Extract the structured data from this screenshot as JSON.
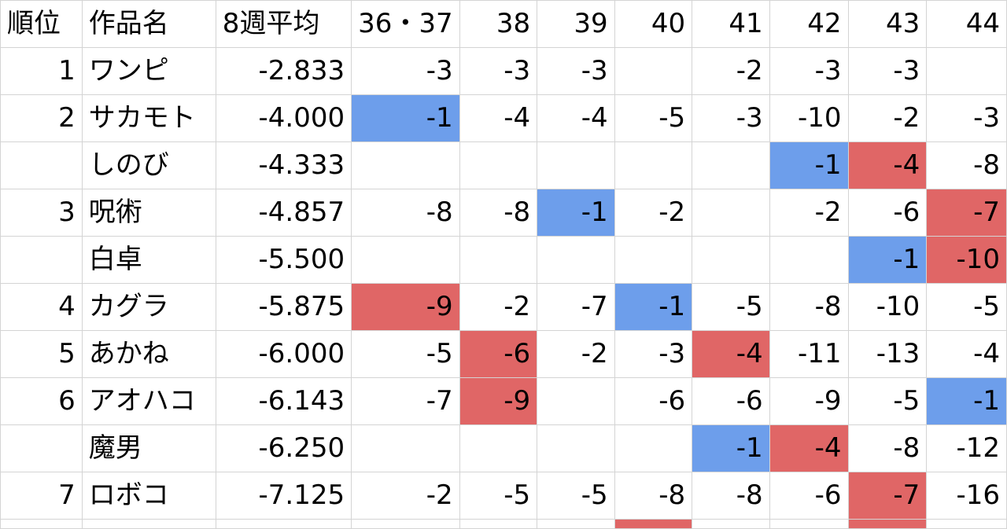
{
  "colors": {
    "blue": "#6d9eeb",
    "red": "#e06666",
    "grid": "#d4d4d4"
  },
  "header": [
    "順位",
    "作品名",
    "8週平均",
    "36・37",
    "38",
    "39",
    "40",
    "41",
    "42",
    "43",
    "44"
  ],
  "rows": [
    {
      "rank": "1",
      "title": "ワンピ",
      "avg": "-2.833",
      "cells": [
        {
          "v": "-3"
        },
        {
          "v": "-3"
        },
        {
          "v": "-3"
        },
        {
          "v": ""
        },
        {
          "v": "-2"
        },
        {
          "v": "-3"
        },
        {
          "v": "-3"
        },
        {
          "v": ""
        }
      ]
    },
    {
      "rank": "2",
      "title": "サカモト",
      "avg": "-4.000",
      "cells": [
        {
          "v": "-1",
          "c": "blue"
        },
        {
          "v": "-4"
        },
        {
          "v": "-4"
        },
        {
          "v": "-5"
        },
        {
          "v": "-3"
        },
        {
          "v": "-10"
        },
        {
          "v": "-2"
        },
        {
          "v": "-3"
        }
      ]
    },
    {
      "rank": "",
      "title": "しのび",
      "avg": "-4.333",
      "cells": [
        {
          "v": ""
        },
        {
          "v": ""
        },
        {
          "v": ""
        },
        {
          "v": ""
        },
        {
          "v": ""
        },
        {
          "v": "-1",
          "c": "blue"
        },
        {
          "v": "-4",
          "c": "red"
        },
        {
          "v": "-8"
        }
      ]
    },
    {
      "rank": "3",
      "title": "呪術",
      "avg": "-4.857",
      "cells": [
        {
          "v": "-8"
        },
        {
          "v": "-8"
        },
        {
          "v": "-1",
          "c": "blue"
        },
        {
          "v": "-2"
        },
        {
          "v": ""
        },
        {
          "v": "-2"
        },
        {
          "v": "-6"
        },
        {
          "v": "-7",
          "c": "red"
        }
      ]
    },
    {
      "rank": "",
      "title": "白卓",
      "avg": "-5.500",
      "cells": [
        {
          "v": ""
        },
        {
          "v": ""
        },
        {
          "v": ""
        },
        {
          "v": ""
        },
        {
          "v": ""
        },
        {
          "v": ""
        },
        {
          "v": "-1",
          "c": "blue"
        },
        {
          "v": "-10",
          "c": "red"
        }
      ]
    },
    {
      "rank": "4",
      "title": "カグラ",
      "avg": "-5.875",
      "cells": [
        {
          "v": "-9",
          "c": "red"
        },
        {
          "v": "-2"
        },
        {
          "v": "-7"
        },
        {
          "v": "-1",
          "c": "blue"
        },
        {
          "v": "-5"
        },
        {
          "v": "-8"
        },
        {
          "v": "-10"
        },
        {
          "v": "-5"
        }
      ]
    },
    {
      "rank": "5",
      "title": "あかね",
      "avg": "-6.000",
      "cells": [
        {
          "v": "-5"
        },
        {
          "v": "-6",
          "c": "red"
        },
        {
          "v": "-2"
        },
        {
          "v": "-3"
        },
        {
          "v": "-4",
          "c": "red"
        },
        {
          "v": "-11"
        },
        {
          "v": "-13"
        },
        {
          "v": "-4"
        }
      ]
    },
    {
      "rank": "6",
      "title": "アオハコ",
      "avg": "-6.143",
      "cells": [
        {
          "v": "-7"
        },
        {
          "v": "-9",
          "c": "red"
        },
        {
          "v": ""
        },
        {
          "v": "-6"
        },
        {
          "v": "-6"
        },
        {
          "v": "-9"
        },
        {
          "v": "-5"
        },
        {
          "v": "-1",
          "c": "blue"
        }
      ]
    },
    {
      "rank": "",
      "title": "魔男",
      "avg": "-6.250",
      "cells": [
        {
          "v": ""
        },
        {
          "v": ""
        },
        {
          "v": ""
        },
        {
          "v": ""
        },
        {
          "v": "-1",
          "c": "blue"
        },
        {
          "v": "-4",
          "c": "red"
        },
        {
          "v": "-8"
        },
        {
          "v": "-12"
        }
      ]
    },
    {
      "rank": "7",
      "title": "ロボコ",
      "avg": "-7.125",
      "cells": [
        {
          "v": "-2"
        },
        {
          "v": "-5"
        },
        {
          "v": "-5"
        },
        {
          "v": "-8"
        },
        {
          "v": "-8"
        },
        {
          "v": "-6"
        },
        {
          "v": "-7",
          "c": "red"
        },
        {
          "v": "-16"
        }
      ]
    }
  ],
  "partial_row_colors": [
    "",
    "",
    "",
    "",
    "",
    "",
    "red",
    "",
    "",
    "red",
    ""
  ]
}
